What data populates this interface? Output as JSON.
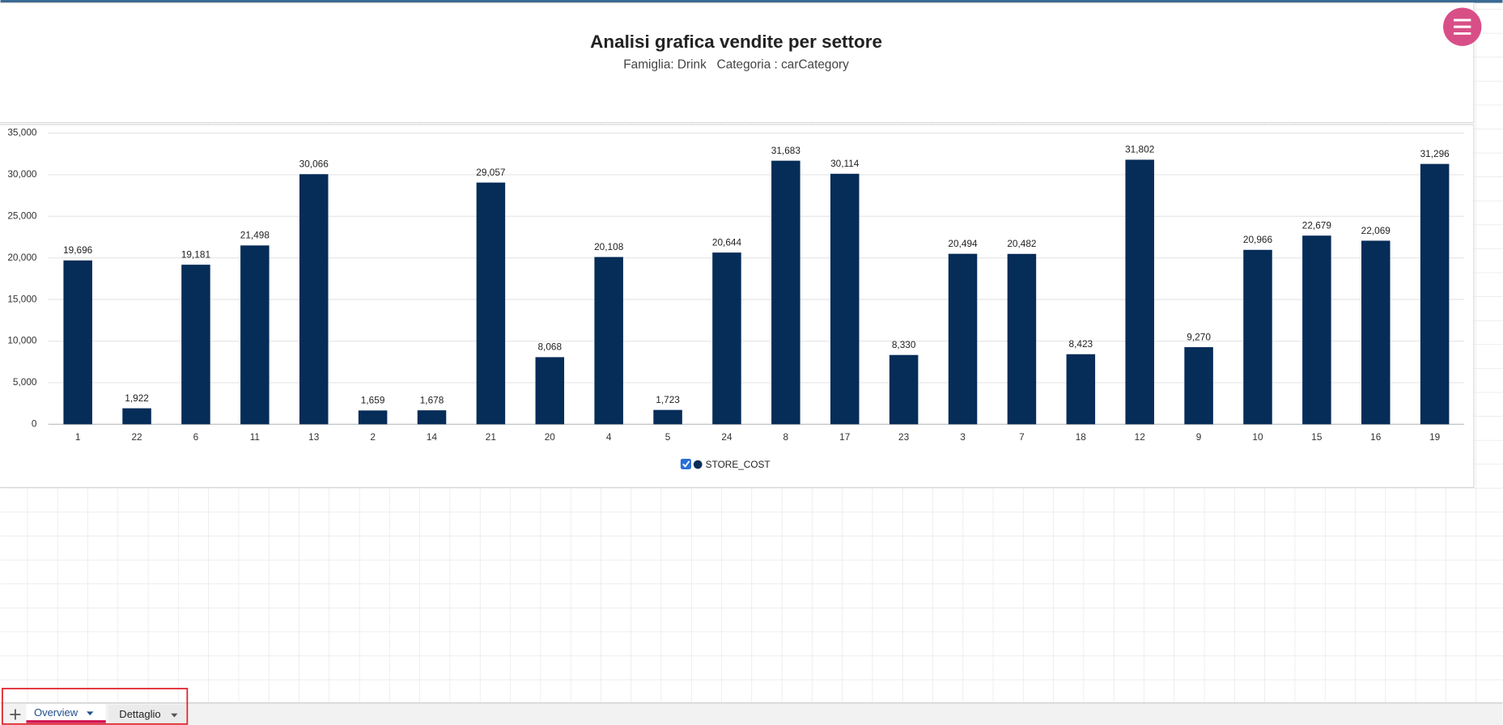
{
  "chart_data": {
    "type": "bar",
    "title": "Analisi grafica vendite per settore",
    "subtitle": "Famiglia: Drink   Categoria : carCategory",
    "categories": [
      "1",
      "22",
      "6",
      "11",
      "13",
      "2",
      "14",
      "21",
      "20",
      "4",
      "5",
      "24",
      "8",
      "17",
      "23",
      "3",
      "7",
      "18",
      "12",
      "9",
      "10",
      "15",
      "16",
      "19"
    ],
    "series": [
      {
        "name": "STORE_COST",
        "color": "#062c58",
        "values": [
          19696,
          1922,
          19181,
          21498,
          30066,
          1659,
          1678,
          29057,
          8068,
          20108,
          1723,
          20644,
          31683,
          30114,
          8330,
          20494,
          20482,
          8423,
          31802,
          9270,
          20966,
          22679,
          22069,
          31296
        ],
        "value_labels": [
          "19,696",
          "1,922",
          "19,181",
          "21,498",
          "30,066",
          "1,659",
          "1,678",
          "29,057",
          "8,068",
          "20,108",
          "1,723",
          "20,644",
          "31,683",
          "30,114",
          "8,330",
          "20,494",
          "20,482",
          "8,423",
          "31,802",
          "9,270",
          "20,966",
          "22,679",
          "22,069",
          "31,296"
        ]
      }
    ],
    "ylim": [
      0,
      35000
    ],
    "yticks": [
      0,
      {
        "value": 5000,
        "label": "5,000"
      },
      {
        "value": 10000,
        "label": "10,000"
      },
      {
        "value": 15000,
        "label": "15,000"
      },
      {
        "value": 20000,
        "label": "20,000"
      },
      {
        "value": 25000,
        "label": "25,000"
      },
      {
        "value": 30000,
        "label": "30,000"
      },
      {
        "value": 35000,
        "label": "35,000"
      }
    ],
    "grid": true,
    "legend": "bottom"
  },
  "tabs": [
    "Overview",
    "Dettaglio"
  ]
}
